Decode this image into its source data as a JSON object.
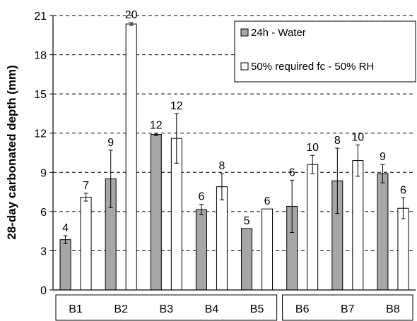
{
  "chart_data": {
    "type": "bar",
    "ylabel": "28-day carbonated depth (mm)",
    "ylim": [
      0,
      21
    ],
    "yticks": [
      0,
      3,
      6,
      9,
      12,
      15,
      18,
      21
    ],
    "grid": "horizontal dashed",
    "legend_position": "top-right",
    "categories": [
      "B1",
      "B2",
      "B3",
      "B4",
      "B5",
      "B6",
      "B7",
      "B8"
    ],
    "category_groups": [
      [
        "B1",
        "B2",
        "B3",
        "B4",
        "B5"
      ],
      [
        "B6",
        "B7",
        "B8"
      ]
    ],
    "series": [
      {
        "name": "24h - Water",
        "color": "#a6a6a6",
        "values": [
          3.85,
          8.5,
          11.9,
          6.15,
          4.7,
          6.4,
          8.35,
          8.9
        ],
        "errors": [
          0.3,
          2.2,
          0.1,
          0.4,
          0.0,
          2.0,
          2.5,
          0.7
        ],
        "labels": [
          "4",
          "9",
          "12",
          "6",
          "5",
          "6",
          "8",
          "9"
        ]
      },
      {
        "name": "50% required fc - 50% RH",
        "color": "#ffffff",
        "values": [
          7.1,
          20.35,
          11.6,
          7.9,
          6.2,
          9.6,
          9.9,
          6.25
        ],
        "errors": [
          0.3,
          0.1,
          1.9,
          1.0,
          0.0,
          0.7,
          1.2,
          0.8
        ],
        "labels": [
          "7",
          "20",
          "12",
          "8",
          "6",
          "10",
          "10",
          "6"
        ]
      }
    ]
  }
}
